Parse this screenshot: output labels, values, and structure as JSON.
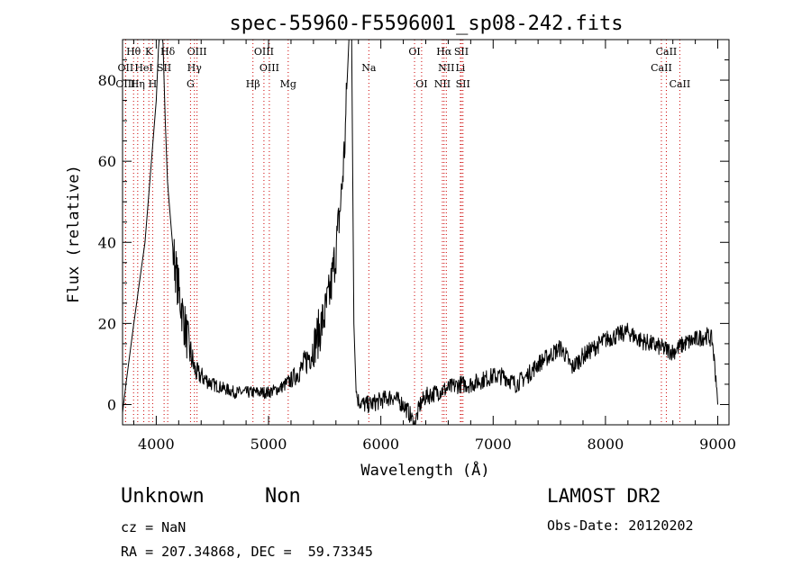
{
  "chart_data": {
    "type": "line",
    "title": "spec-55960-F5596001_sp08-242.fits",
    "xlabel": "Wavelength (Å)",
    "ylabel": "Flux (relative)",
    "xlim": [
      3700,
      9100
    ],
    "ylim": [
      -5,
      90
    ],
    "xticks": [
      4000,
      5000,
      6000,
      7000,
      8000,
      9000
    ],
    "yticks": [
      0,
      20,
      40,
      60,
      80
    ],
    "grid": false,
    "series_color": "#000000",
    "line_marker_color": "#cc0000",
    "spectrum": {
      "x": [
        3700,
        3730,
        3800,
        3900,
        4000,
        4020,
        4040,
        4060,
        4080,
        4100,
        4150,
        4200,
        4250,
        4300,
        4350,
        4400,
        4500,
        4600,
        4700,
        4800,
        4900,
        5000,
        5100,
        5200,
        5300,
        5400,
        5500,
        5550,
        5600,
        5650,
        5680,
        5700,
        5720,
        5740,
        5760,
        5780,
        5800,
        5850,
        5900,
        6000,
        6100,
        6200,
        6250,
        6300,
        6350,
        6400,
        6500,
        6600,
        6700,
        6800,
        6900,
        7000,
        7100,
        7200,
        7300,
        7400,
        7500,
        7600,
        7650,
        7700,
        7800,
        7900,
        8000,
        8100,
        8200,
        8300,
        8400,
        8500,
        8600,
        8700,
        8800,
        8900,
        8950,
        8990,
        9000
      ],
      "y": [
        -2,
        5,
        20,
        40,
        75,
        88,
        95,
        89,
        70,
        55,
        38,
        28,
        20,
        13,
        8,
        7,
        5,
        4,
        3,
        3,
        3,
        3,
        4,
        6,
        9,
        14,
        22,
        28,
        38,
        52,
        65,
        80,
        93,
        92,
        20,
        3,
        1,
        0,
        0,
        1,
        2,
        0,
        -2,
        -5,
        0,
        2,
        3,
        4,
        5,
        5,
        6,
        7,
        7,
        5,
        7,
        10,
        12,
        14,
        12,
        9,
        12,
        14,
        16,
        17,
        18,
        16,
        15,
        14,
        13,
        15,
        16,
        17,
        16,
        5,
        0
      ]
    },
    "lines": [
      {
        "label": "Hθ",
        "x": 3798,
        "row": 1
      },
      {
        "label": "K",
        "x": 3934,
        "row": 1
      },
      {
        "label": "Hδ",
        "x": 4102,
        "row": 1
      },
      {
        "label": "OIII",
        "x": 4363,
        "row": 1
      },
      {
        "label": "OIII",
        "x": 4959,
        "row": 1
      },
      {
        "label": "OI",
        "x": 6300,
        "row": 1
      },
      {
        "label": "Hα",
        "x": 6563,
        "row": 1
      },
      {
        "label": "SII",
        "x": 6717,
        "row": 1
      },
      {
        "label": "CaII",
        "x": 8542,
        "row": 1
      },
      {
        "label": "OII",
        "x": 3727,
        "row": 2
      },
      {
        "label": "HeI",
        "x": 3889,
        "row": 2
      },
      {
        "label": "SII",
        "x": 4070,
        "row": 2
      },
      {
        "label": "Hγ",
        "x": 4340,
        "row": 2
      },
      {
        "label": "OIII",
        "x": 5007,
        "row": 2
      },
      {
        "label": "Na",
        "x": 5893,
        "row": 2
      },
      {
        "label": "NII",
        "x": 6583,
        "row": 2
      },
      {
        "label": "Li",
        "x": 6708,
        "row": 2
      },
      {
        "label": "CaII",
        "x": 8498,
        "row": 2
      },
      {
        "label": "OIII",
        "x": 3727,
        "row": 3
      },
      {
        "label": "Hη",
        "x": 3835,
        "row": 3
      },
      {
        "label": "H",
        "x": 3968,
        "row": 3
      },
      {
        "label": "G",
        "x": 4305,
        "row": 3
      },
      {
        "label": "Hβ",
        "x": 4861,
        "row": 3
      },
      {
        "label": "Mg",
        "x": 5175,
        "row": 3
      },
      {
        "label": "OI",
        "x": 6363,
        "row": 3
      },
      {
        "label": "NII",
        "x": 6548,
        "row": 3
      },
      {
        "label": "SII",
        "x": 6731,
        "row": 3
      },
      {
        "label": "CaII",
        "x": 8662,
        "row": 3
      }
    ]
  },
  "info": {
    "class": "Unknown",
    "subclass": "Non",
    "survey": "LAMOST DR2",
    "cz": "cz = NaN",
    "obs_date": "Obs-Date: 20120202",
    "coords": "RA = 207.34868, DEC =  59.73345"
  }
}
